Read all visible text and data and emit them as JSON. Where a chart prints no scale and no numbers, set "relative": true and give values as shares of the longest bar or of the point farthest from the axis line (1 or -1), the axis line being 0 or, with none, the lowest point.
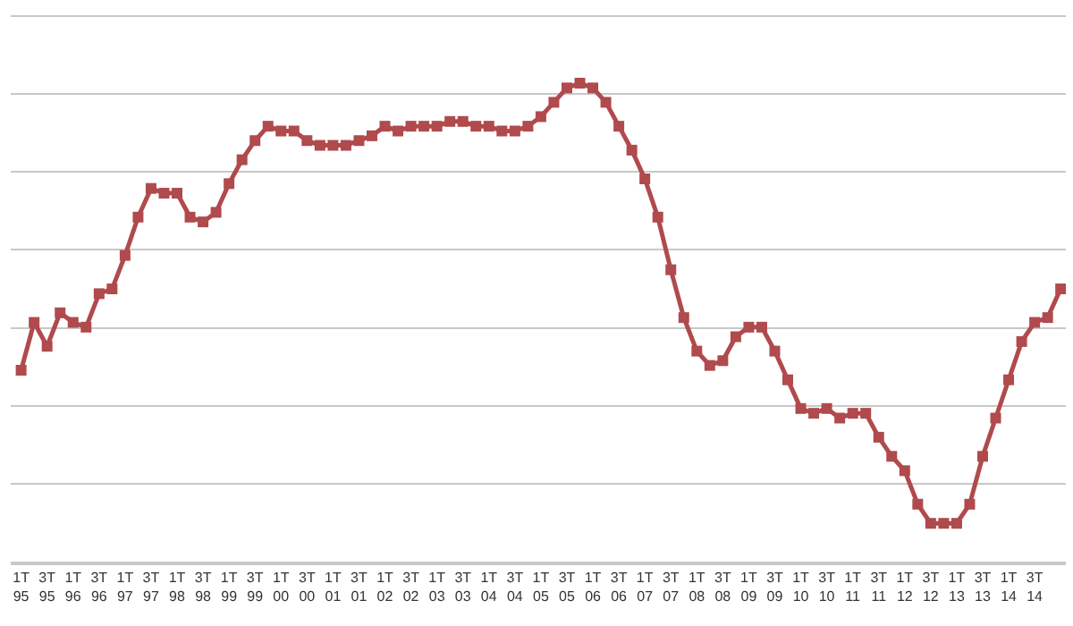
{
  "chart_data": {
    "type": "line",
    "relative": true,
    "grid": "y",
    "marker": "square",
    "line_style": "solid",
    "categories": [
      "1T\n95",
      null,
      "3T\n95",
      null,
      "1T\n96",
      null,
      "3T\n96",
      null,
      "1T\n97",
      null,
      "3T\n97",
      null,
      "1T\n98",
      null,
      "3T\n98",
      null,
      "1T\n99",
      null,
      "3T\n99",
      null,
      "1T\n00",
      null,
      "3T\n00",
      null,
      "1T\n01",
      null,
      "3T\n01",
      null,
      "1T\n02",
      null,
      "3T\n02",
      null,
      "1T\n03",
      null,
      "3T\n03",
      null,
      "1T\n04",
      null,
      "3T\n04",
      null,
      "1T\n05",
      null,
      "3T\n05",
      null,
      "1T\n06",
      null,
      "3T\n06",
      null,
      "1T\n07",
      null,
      "3T\n07",
      null,
      "1T\n08",
      null,
      "3T\n08",
      null,
      "1T\n09",
      null,
      "3T\n09",
      null,
      "1T\n10",
      null,
      "3T\n10",
      null,
      "1T\n11",
      null,
      "3T\n11",
      null,
      "1T\n12",
      null,
      "3T\n12",
      null,
      "1T\n13",
      null,
      "3T\n13",
      null,
      "1T\n14",
      null,
      "3T\n14",
      null,
      null
    ],
    "series": [
      {
        "color": "#b04a4d",
        "values": [
          0.4,
          0.5,
          0.45,
          0.52,
          0.5,
          0.49,
          0.56,
          0.57,
          0.64,
          0.72,
          0.78,
          0.77,
          0.77,
          0.72,
          0.71,
          0.73,
          0.79,
          0.84,
          0.88,
          0.91,
          0.9,
          0.9,
          0.88,
          0.87,
          0.87,
          0.87,
          0.88,
          0.89,
          0.91,
          0.9,
          0.91,
          0.91,
          0.91,
          0.92,
          0.92,
          0.91,
          0.91,
          0.9,
          0.9,
          0.91,
          0.93,
          0.96,
          0.99,
          1,
          0.99,
          0.96,
          0.91,
          0.86,
          0.8,
          0.72,
          0.61,
          0.51,
          0.44,
          0.41,
          0.42,
          0.47,
          0.49,
          0.49,
          0.44,
          0.38,
          0.32,
          0.31,
          0.32,
          0.3,
          0.31,
          0.31,
          0.26,
          0.22,
          0.19,
          0.12,
          0.08,
          0.08,
          0.08,
          0.12,
          0.22,
          0.3,
          0.38,
          0.46,
          0.5,
          0.51,
          0.57
        ]
      }
    ]
  }
}
